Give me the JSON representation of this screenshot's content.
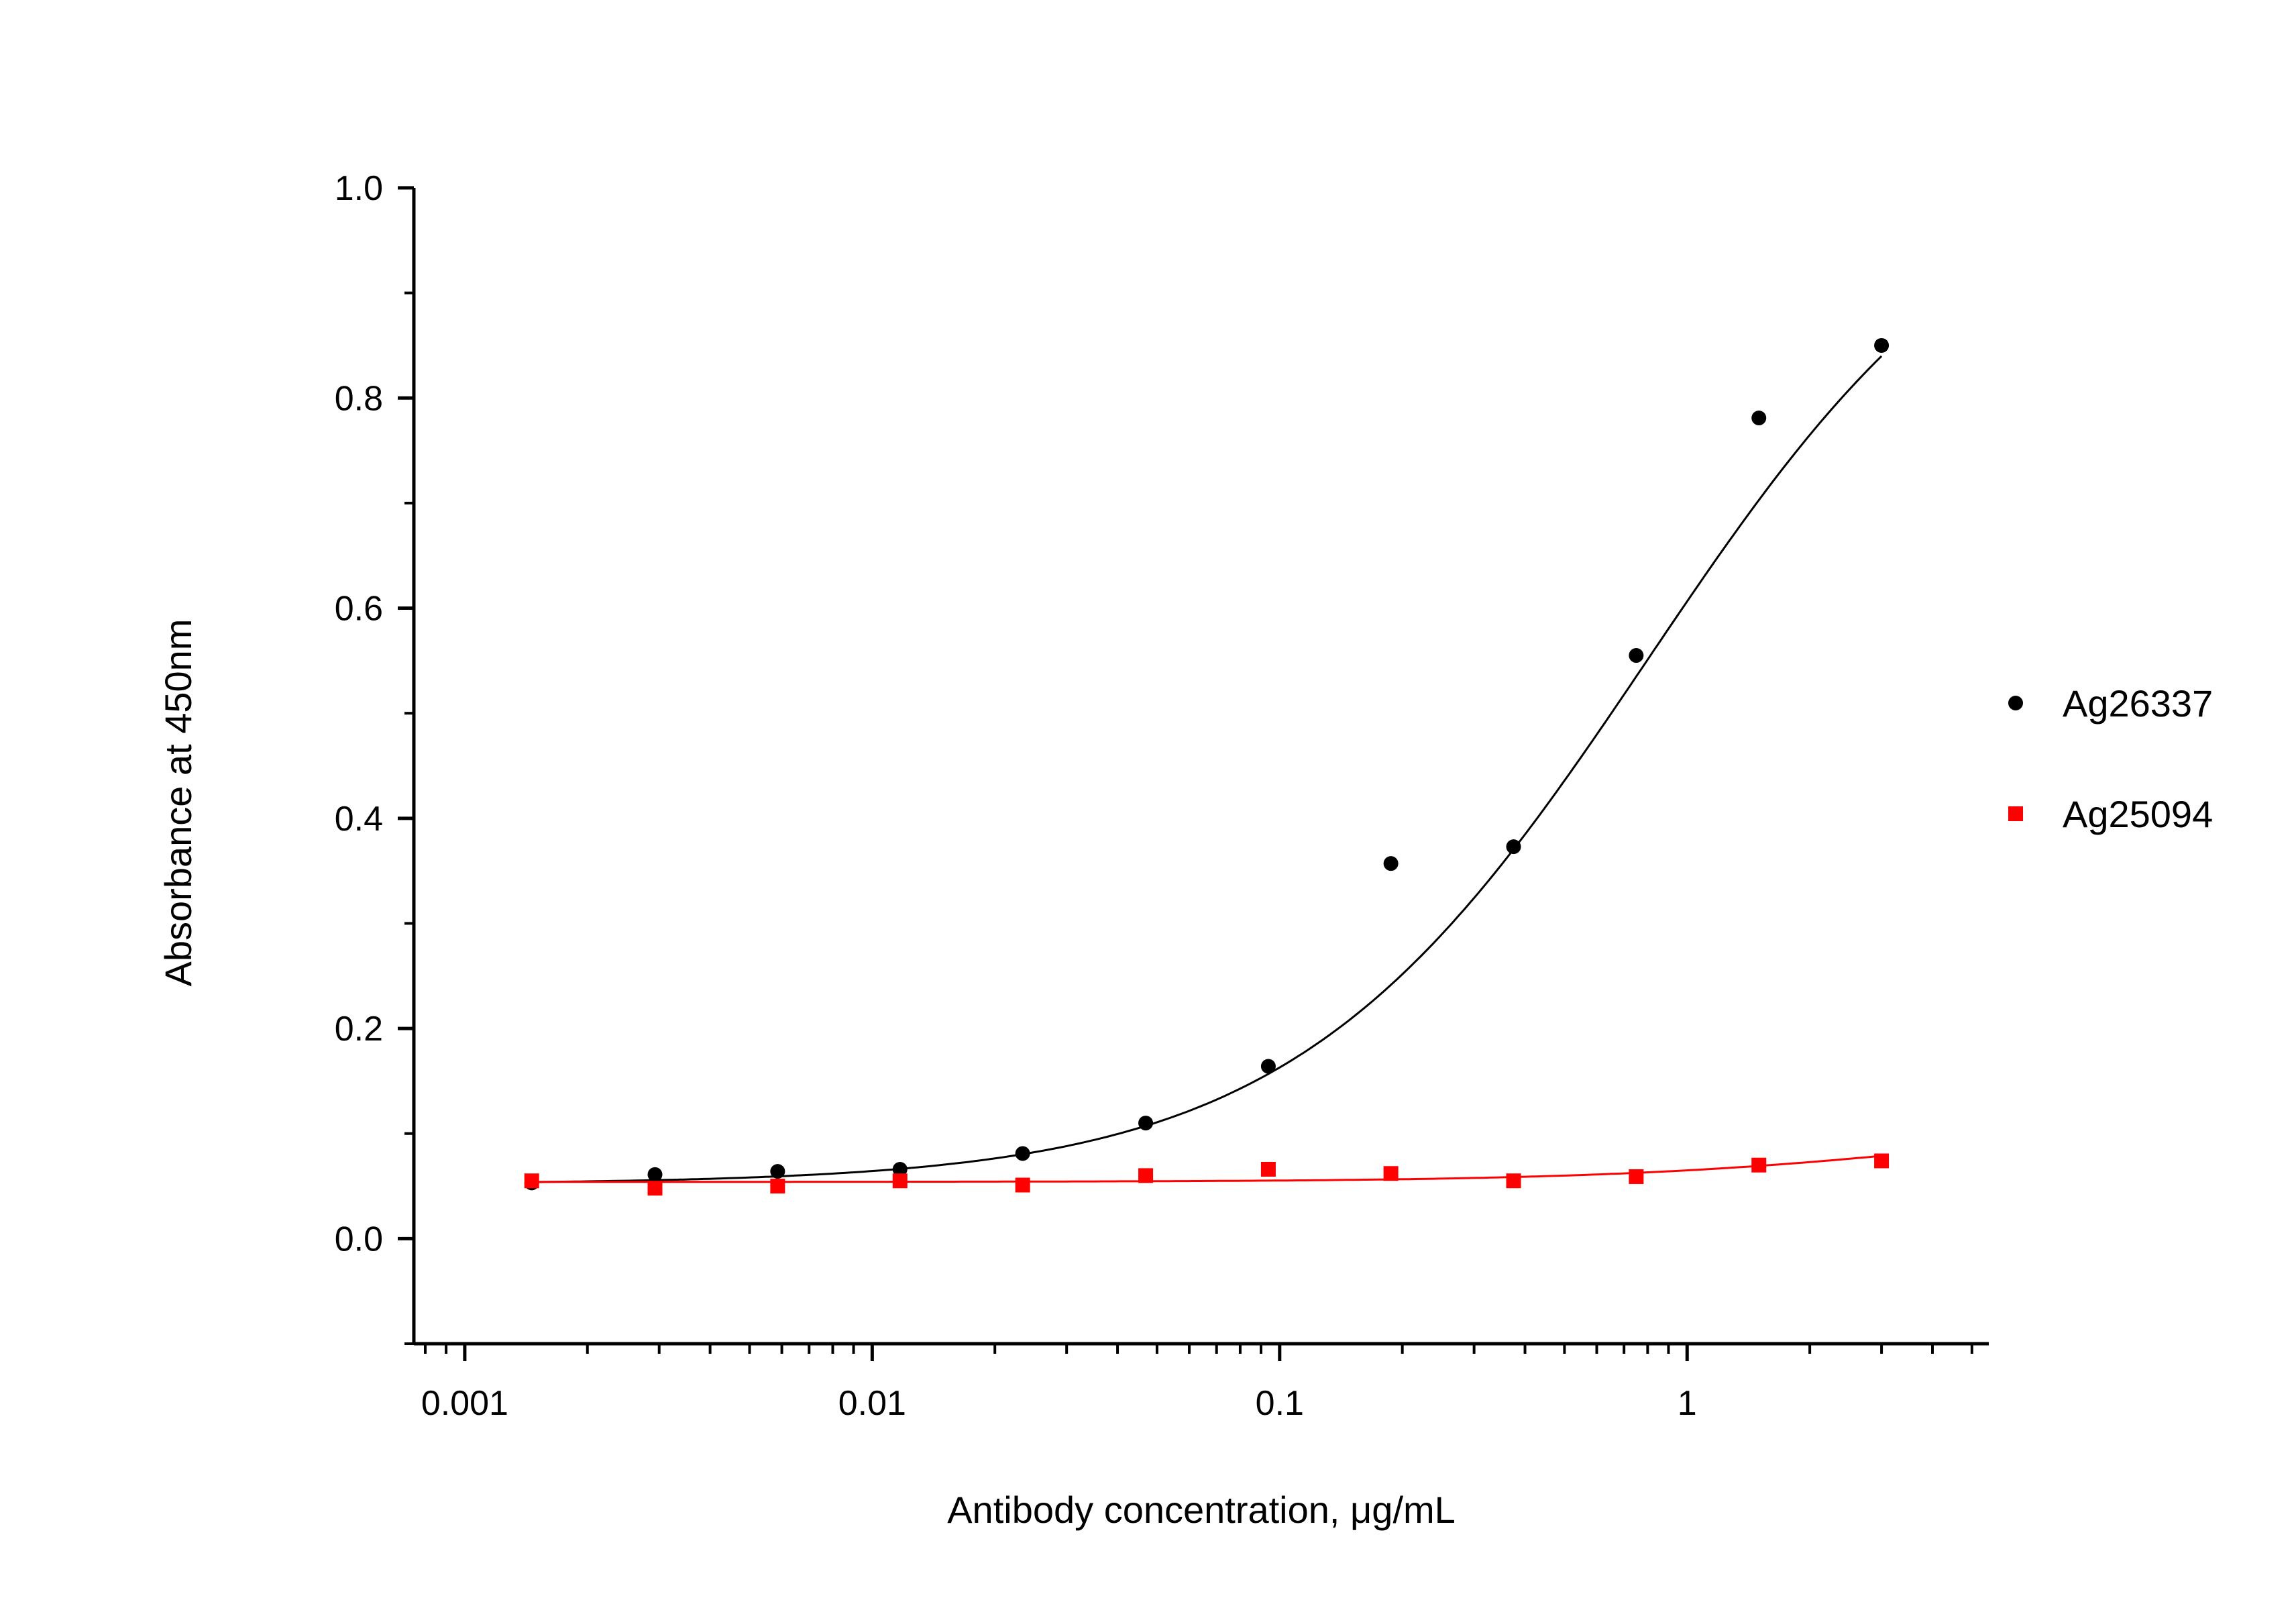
{
  "chart_data": {
    "type": "scatter",
    "title": "",
    "xlabel": "Antibody concentration, μg/mL",
    "ylabel": "Absorbance at 450nm",
    "xscale": "log",
    "xlim": [
      0.00075,
      5.5
    ],
    "ylim": [
      -0.1,
      1.0
    ],
    "xticks": [
      {
        "value": 0.001,
        "label": "0.001"
      },
      {
        "value": 0.01,
        "label": "0.01"
      },
      {
        "value": 0.1,
        "label": "0.1"
      },
      {
        "value": 1,
        "label": "1"
      }
    ],
    "yticks": [
      {
        "value": 0.0,
        "label": "0.0"
      },
      {
        "value": 0.2,
        "label": "0.2"
      },
      {
        "value": 0.4,
        "label": "0.4"
      },
      {
        "value": 0.6,
        "label": "0.6"
      },
      {
        "value": 0.8,
        "label": "0.8"
      },
      {
        "value": 1.0,
        "label": "1.0"
      }
    ],
    "grid": false,
    "legend_position": "right",
    "series": [
      {
        "name": "Ag26337",
        "marker": "circle",
        "color": "#000000",
        "x": [
          0.00146,
          0.00293,
          0.00586,
          0.0117,
          0.0234,
          0.0469,
          0.0938,
          0.1875,
          0.375,
          0.75,
          1.5,
          3.0
        ],
        "y": [
          0.053,
          0.061,
          0.064,
          0.066,
          0.081,
          0.11,
          0.164,
          0.357,
          0.373,
          0.555,
          0.781,
          0.85
        ],
        "fit": {
          "bottom": 0.052,
          "top": 1.05,
          "ec50": 0.8,
          "hill": 1.0
        }
      },
      {
        "name": "Ag25094",
        "marker": "square",
        "color": "#ff0000",
        "x": [
          0.00146,
          0.00293,
          0.00586,
          0.0117,
          0.0234,
          0.0469,
          0.0938,
          0.1875,
          0.375,
          0.75,
          1.5,
          3.0
        ],
        "y": [
          0.055,
          0.048,
          0.05,
          0.055,
          0.051,
          0.06,
          0.066,
          0.062,
          0.055,
          0.059,
          0.07,
          0.074
        ],
        "fit": {
          "bottom": 0.054,
          "top": 0.12,
          "ec50": 5.0,
          "hill": 1.0
        }
      }
    ]
  }
}
